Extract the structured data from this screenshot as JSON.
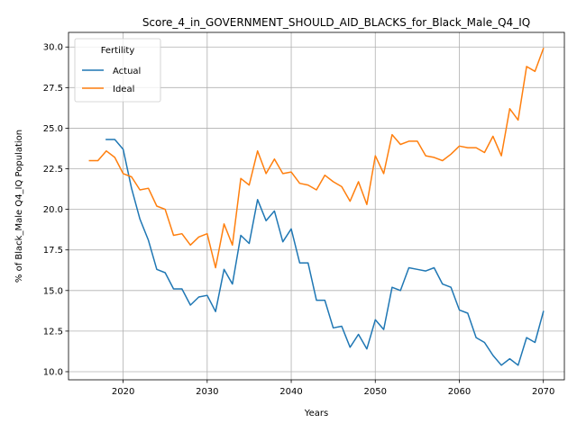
{
  "chart_data": {
    "type": "line",
    "title": "Score_4_in_GOVERNMENT_SHOULD_AID_BLACKS_for_Black_Male_Q4_IQ",
    "xlabel": "Years",
    "ylabel": "% of Black_Male Q4_IQ Population",
    "xlim": [
      2013.5,
      2072.5
    ],
    "ylim": [
      9.5,
      30.9
    ],
    "xticks": [
      2020,
      2030,
      2040,
      2050,
      2060,
      2070
    ],
    "yticks": [
      10.0,
      12.5,
      15.0,
      17.5,
      20.0,
      22.5,
      25.0,
      27.5,
      30.0
    ],
    "ytick_labels": [
      "10.0",
      "12.5",
      "15.0",
      "17.5",
      "20.0",
      "22.5",
      "25.0",
      "27.5",
      "30.0"
    ],
    "grid": true,
    "legend": {
      "title": "Fertility",
      "position": "top-left"
    },
    "series": [
      {
        "name": "Actual",
        "color": "#1f77b4",
        "x": [
          2018,
          2019,
          2020,
          2021,
          2022,
          2023,
          2024,
          2025,
          2026,
          2027,
          2028,
          2029,
          2030,
          2031,
          2032,
          2033,
          2034,
          2035,
          2036,
          2037,
          2038,
          2039,
          2040,
          2041,
          2042,
          2043,
          2044,
          2045,
          2046,
          2047,
          2048,
          2049,
          2050,
          2051,
          2052,
          2053,
          2054,
          2055,
          2056,
          2057,
          2058,
          2059,
          2060,
          2061,
          2062,
          2063,
          2064,
          2065,
          2066,
          2067,
          2068,
          2069,
          2070
        ],
        "y": [
          24.3,
          24.3,
          23.7,
          21.3,
          19.4,
          18.1,
          16.3,
          16.1,
          15.1,
          15.1,
          14.1,
          14.6,
          14.7,
          13.7,
          16.3,
          15.4,
          18.4,
          17.9,
          20.6,
          19.3,
          19.9,
          18.0,
          18.8,
          16.7,
          16.7,
          14.4,
          14.4,
          12.7,
          12.8,
          11.5,
          12.3,
          11.4,
          13.2,
          12.6,
          15.2,
          15.0,
          16.4,
          16.3,
          16.2,
          16.4,
          15.4,
          15.2,
          13.8,
          13.6,
          12.1,
          11.8,
          11.0,
          10.4,
          10.8,
          10.4,
          12.1,
          11.8,
          13.7
        ]
      },
      {
        "name": "Ideal",
        "color": "#ff7f0e",
        "x": [
          2016,
          2017,
          2018,
          2019,
          2020,
          2021,
          2022,
          2023,
          2024,
          2025,
          2026,
          2027,
          2028,
          2029,
          2030,
          2031,
          2032,
          2033,
          2034,
          2035,
          2036,
          2037,
          2038,
          2039,
          2040,
          2041,
          2042,
          2043,
          2044,
          2045,
          2046,
          2047,
          2048,
          2049,
          2050,
          2051,
          2052,
          2053,
          2054,
          2055,
          2056,
          2057,
          2058,
          2059,
          2060,
          2061,
          2062,
          2063,
          2064,
          2065,
          2066,
          2067,
          2068,
          2069,
          2070
        ],
        "y": [
          23.0,
          23.0,
          23.6,
          23.2,
          22.2,
          22.0,
          21.2,
          21.3,
          20.2,
          20.0,
          18.4,
          18.5,
          17.8,
          18.3,
          18.5,
          16.4,
          19.1,
          17.8,
          21.9,
          21.5,
          23.6,
          22.2,
          23.1,
          22.2,
          22.3,
          21.6,
          21.5,
          21.2,
          22.1,
          21.7,
          21.4,
          20.5,
          21.7,
          20.3,
          23.3,
          22.2,
          24.6,
          24.0,
          24.2,
          24.2,
          23.3,
          23.2,
          23.0,
          23.4,
          23.9,
          23.8,
          23.8,
          23.5,
          24.5,
          23.3,
          26.2,
          25.5,
          28.8,
          28.5,
          29.9
        ]
      }
    ]
  }
}
